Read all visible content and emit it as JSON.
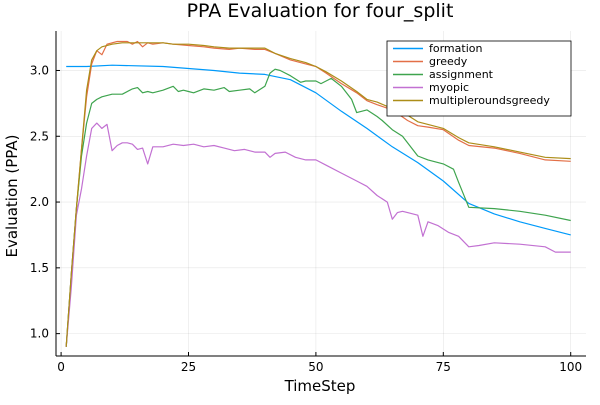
{
  "chart_data": {
    "type": "line",
    "title": "PPA Evaluation for four_split",
    "xlabel": "TimeStep",
    "ylabel": "Evaluation (PPA)",
    "xlim": [
      -1,
      103
    ],
    "ylim": [
      0.83,
      3.3
    ],
    "xticks": [
      0,
      25,
      50,
      75,
      100
    ],
    "yticks": [
      1.0,
      1.5,
      2.0,
      2.5,
      3.0
    ],
    "grid": true,
    "legend_position": "top-right",
    "series": [
      {
        "name": "formation",
        "color": "#009AFA",
        "x": [
          1,
          5,
          10,
          20,
          30,
          35,
          40,
          45,
          50,
          55,
          60,
          65,
          70,
          75,
          80,
          85,
          90,
          95,
          100
        ],
        "y": [
          3.03,
          3.03,
          3.04,
          3.03,
          3.0,
          2.98,
          2.97,
          2.93,
          2.83,
          2.69,
          2.56,
          2.42,
          2.3,
          2.16,
          1.99,
          1.91,
          1.85,
          1.8,
          1.75
        ]
      },
      {
        "name": "greedy",
        "color": "#E36F47",
        "x": [
          1,
          2,
          3,
          4,
          5,
          6,
          7,
          8,
          9,
          10,
          11,
          12,
          13,
          14,
          15,
          16,
          17,
          18,
          20,
          22,
          25,
          28,
          30,
          33,
          35,
          38,
          40,
          42,
          45,
          48,
          50,
          52,
          55,
          58,
          60,
          62,
          65,
          68,
          70,
          72,
          75,
          78,
          80,
          85,
          90,
          95,
          100
        ],
        "y": [
          0.9,
          1.45,
          1.95,
          2.4,
          2.8,
          3.05,
          3.15,
          3.12,
          3.2,
          3.21,
          3.22,
          3.22,
          3.22,
          3.2,
          3.22,
          3.18,
          3.21,
          3.2,
          3.21,
          3.2,
          3.19,
          3.18,
          3.17,
          3.16,
          3.17,
          3.16,
          3.16,
          3.13,
          3.08,
          3.05,
          3.03,
          2.98,
          2.9,
          2.83,
          2.77,
          2.74,
          2.7,
          2.62,
          2.58,
          2.57,
          2.55,
          2.47,
          2.43,
          2.41,
          2.37,
          2.32,
          2.31
        ]
      },
      {
        "name": "assignment",
        "color": "#3EA44E",
        "x": [
          1,
          2,
          3,
          4,
          5,
          6,
          7,
          8,
          10,
          12,
          14,
          15,
          16,
          17,
          18,
          20,
          22,
          23,
          24,
          25,
          26,
          28,
          30,
          32,
          33,
          35,
          37,
          38,
          40,
          41,
          42,
          43,
          45,
          47,
          48,
          50,
          51,
          53,
          55,
          57,
          58,
          60,
          62,
          63,
          65,
          67,
          70,
          72,
          75,
          77,
          78,
          80,
          85,
          90,
          95,
          100
        ],
        "y": [
          0.9,
          1.45,
          1.95,
          2.35,
          2.6,
          2.75,
          2.78,
          2.8,
          2.82,
          2.82,
          2.86,
          2.87,
          2.83,
          2.84,
          2.83,
          2.85,
          2.88,
          2.84,
          2.85,
          2.84,
          2.83,
          2.86,
          2.85,
          2.87,
          2.84,
          2.85,
          2.86,
          2.83,
          2.88,
          2.98,
          3.01,
          3.0,
          2.96,
          2.91,
          2.92,
          2.92,
          2.9,
          2.94,
          2.88,
          2.78,
          2.68,
          2.7,
          2.65,
          2.62,
          2.55,
          2.5,
          2.35,
          2.32,
          2.29,
          2.25,
          2.15,
          1.96,
          1.95,
          1.93,
          1.9,
          1.86
        ]
      },
      {
        "name": "myopic",
        "color": "#C271D2",
        "x": [
          1,
          2,
          3,
          4,
          5,
          6,
          7,
          8,
          9,
          10,
          11,
          12,
          13,
          14,
          15,
          16,
          17,
          18,
          20,
          22,
          24,
          26,
          28,
          30,
          32,
          34,
          36,
          38,
          40,
          41,
          42,
          44,
          46,
          48,
          50,
          52,
          55,
          58,
          60,
          62,
          64,
          65,
          66,
          67,
          68,
          70,
          71,
          72,
          74,
          76,
          78,
          80,
          82,
          85,
          90,
          95,
          97,
          100
        ],
        "y": [
          0.9,
          1.35,
          1.9,
          2.1,
          2.35,
          2.56,
          2.6,
          2.56,
          2.59,
          2.39,
          2.43,
          2.45,
          2.45,
          2.44,
          2.4,
          2.41,
          2.29,
          2.42,
          2.42,
          2.44,
          2.43,
          2.44,
          2.42,
          2.43,
          2.41,
          2.39,
          2.4,
          2.38,
          2.38,
          2.34,
          2.37,
          2.38,
          2.34,
          2.32,
          2.32,
          2.28,
          2.22,
          2.16,
          2.12,
          2.05,
          2.0,
          1.87,
          1.92,
          1.93,
          1.92,
          1.9,
          1.74,
          1.85,
          1.82,
          1.77,
          1.74,
          1.66,
          1.67,
          1.69,
          1.68,
          1.66,
          1.62,
          1.62
        ]
      },
      {
        "name": "multipleroundsgreedy",
        "color": "#AC8D18",
        "x": [
          1,
          2,
          3,
          4,
          5,
          6,
          7,
          8,
          10,
          12,
          14,
          16,
          18,
          20,
          22,
          25,
          28,
          30,
          33,
          35,
          38,
          40,
          42,
          45,
          48,
          50,
          52,
          55,
          58,
          60,
          62,
          65,
          68,
          70,
          72,
          75,
          78,
          80,
          85,
          90,
          95,
          100
        ],
        "y": [
          0.9,
          1.45,
          1.95,
          2.4,
          2.85,
          3.08,
          3.15,
          3.18,
          3.2,
          3.21,
          3.21,
          3.21,
          3.21,
          3.21,
          3.2,
          3.2,
          3.19,
          3.18,
          3.17,
          3.17,
          3.17,
          3.17,
          3.13,
          3.09,
          3.06,
          3.03,
          2.99,
          2.92,
          2.84,
          2.78,
          2.76,
          2.71,
          2.66,
          2.61,
          2.59,
          2.56,
          2.49,
          2.45,
          2.42,
          2.38,
          2.34,
          2.33
        ]
      }
    ]
  }
}
